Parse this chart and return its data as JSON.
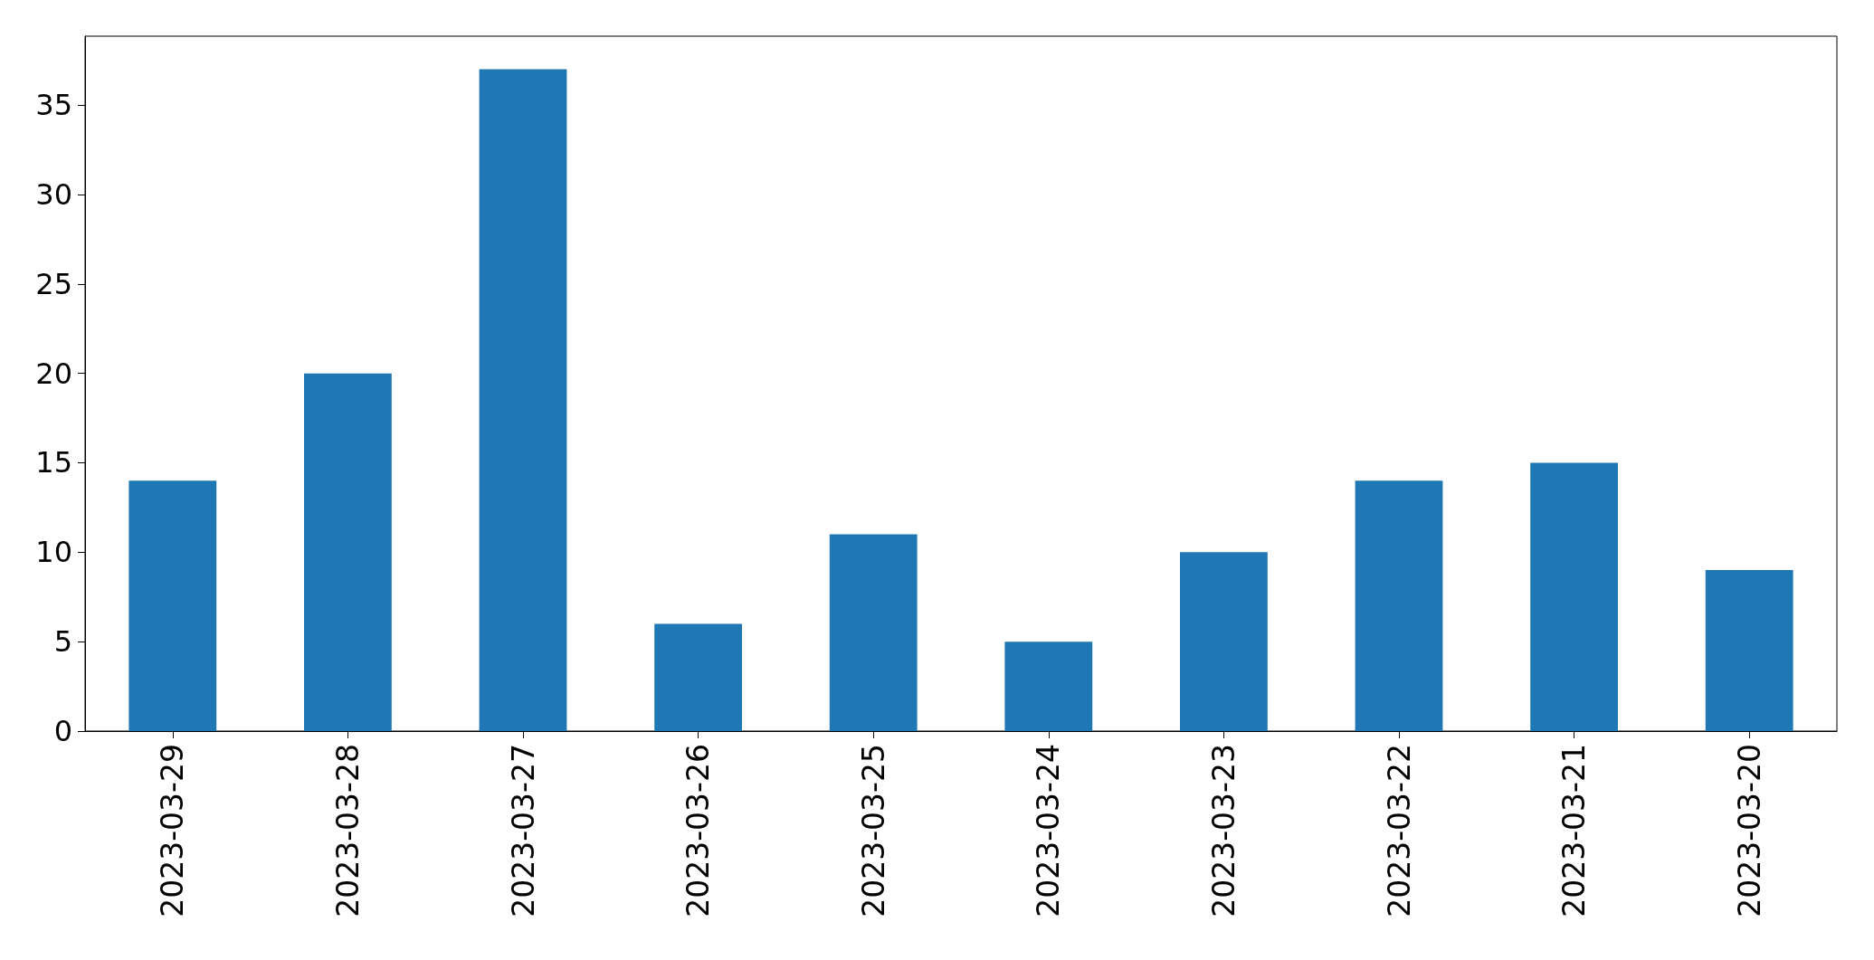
{
  "chart_data": {
    "type": "bar",
    "categories": [
      "2023-03-29",
      "2023-03-28",
      "2023-03-27",
      "2023-03-26",
      "2023-03-25",
      "2023-03-24",
      "2023-03-23",
      "2023-03-22",
      "2023-03-21",
      "2023-03-20"
    ],
    "values": [
      14,
      20,
      37,
      6,
      11,
      5,
      10,
      14,
      15,
      9
    ],
    "color": "#1f77b4",
    "ylim": [
      0,
      38.85
    ],
    "yticks": [
      0,
      5,
      10,
      15,
      20,
      25,
      30,
      35
    ],
    "grid": false
  }
}
